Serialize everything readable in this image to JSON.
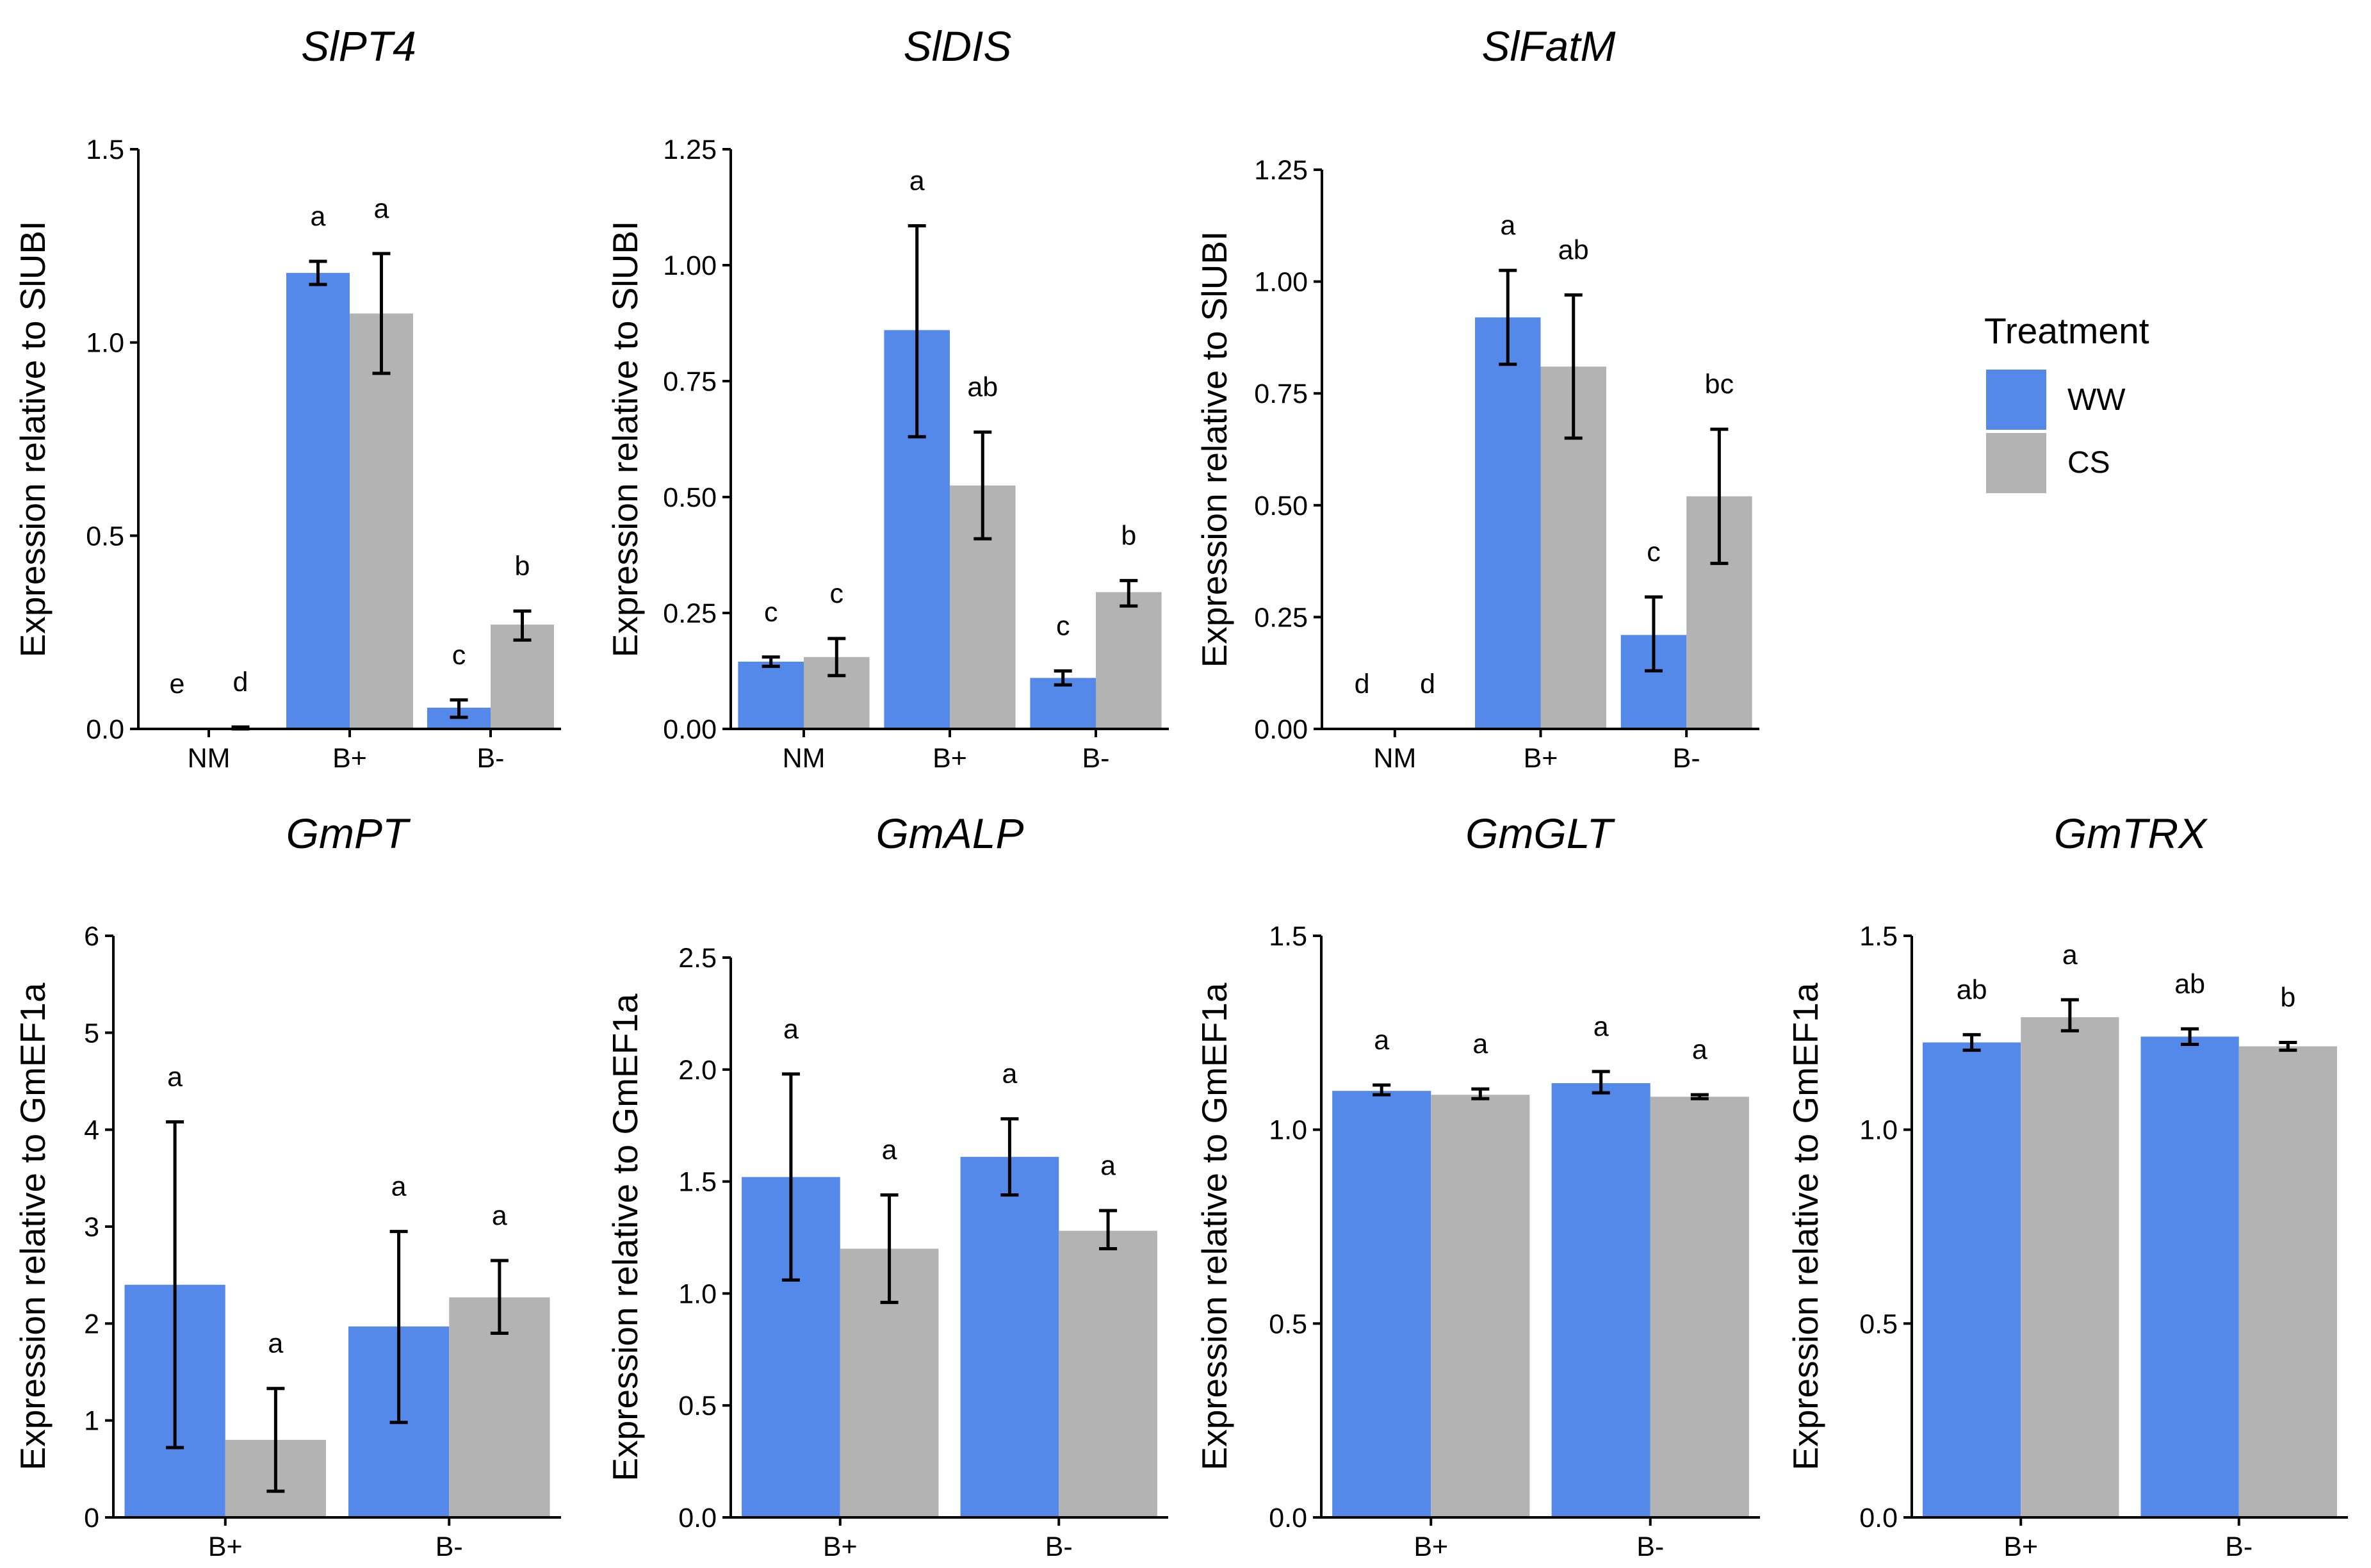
{
  "colors": {
    "WW": "#5589E9",
    "CS": "#B3B3B3",
    "axis": "#000000",
    "background": "#FFFFFF"
  },
  "legend": {
    "title": "Treatment",
    "items": [
      {
        "label": "WW",
        "color": "#5589E9"
      },
      {
        "label": "CS",
        "color": "#B3B3B3"
      }
    ]
  },
  "chart_data": [
    {
      "id": "SlPT4",
      "type": "bar",
      "title": "SlPT4",
      "ylabel": "Expression relative to SlUBI",
      "categories": [
        "NM",
        "B+",
        "B-"
      ],
      "ylim": [
        0,
        1.5
      ],
      "yticks": [
        0.0,
        0.5,
        1.0,
        1.5
      ],
      "ytick_labels": [
        "0.0",
        "0.5",
        "1.0",
        "1.5"
      ],
      "series": [
        {
          "name": "WW",
          "values": [
            0.0,
            1.18,
            0.055
          ],
          "err_low": [
            0.0,
            1.15,
            0.03
          ],
          "err_high": [
            0.0,
            1.21,
            0.075
          ],
          "letters": [
            "e",
            "a",
            "c"
          ]
        },
        {
          "name": "CS",
          "values": [
            0.003,
            1.075,
            0.27
          ],
          "err_low": [
            0.0,
            0.92,
            0.23
          ],
          "err_high": [
            0.005,
            1.23,
            0.305
          ],
          "letters": [
            "d",
            "a",
            "b"
          ]
        }
      ]
    },
    {
      "id": "SlDIS",
      "type": "bar",
      "title": "SlDIS",
      "ylabel": "Expression relative to SlUBI",
      "categories": [
        "NM",
        "B+",
        "B-"
      ],
      "ylim": [
        0,
        1.25
      ],
      "yticks": [
        0.0,
        0.25,
        0.5,
        0.75,
        1.0,
        1.25
      ],
      "ytick_labels": [
        "0.00",
        "0.25",
        "0.50",
        "0.75",
        "1.00",
        "1.25"
      ],
      "series": [
        {
          "name": "WW",
          "values": [
            0.145,
            0.86,
            0.11
          ],
          "err_low": [
            0.135,
            0.63,
            0.095
          ],
          "err_high": [
            0.155,
            1.085,
            0.125
          ],
          "letters": [
            "c",
            "a",
            "c"
          ]
        },
        {
          "name": "CS",
          "values": [
            0.155,
            0.525,
            0.295
          ],
          "err_low": [
            0.115,
            0.41,
            0.265
          ],
          "err_high": [
            0.195,
            0.64,
            0.32
          ],
          "letters": [
            "c",
            "ab",
            "b"
          ]
        }
      ]
    },
    {
      "id": "SlFatM",
      "type": "bar",
      "title": "SlFatM",
      "ylabel": "Expression relative to SlUBI",
      "categories": [
        "NM",
        "B+",
        "B-"
      ],
      "ylim": [
        0,
        1.25
      ],
      "yticks": [
        0.0,
        0.25,
        0.5,
        0.75,
        1.0,
        1.25
      ],
      "ytick_labels": [
        "0.00",
        "0.25",
        "0.50",
        "0.75",
        "1.00",
        "1.25"
      ],
      "series": [
        {
          "name": "WW",
          "values": [
            0.0,
            0.92,
            0.21
          ],
          "err_low": [
            0.0,
            0.815,
            0.13
          ],
          "err_high": [
            0.0,
            1.025,
            0.295
          ],
          "letters": [
            "d",
            "a",
            "c"
          ]
        },
        {
          "name": "CS",
          "values": [
            0.0,
            0.81,
            0.52
          ],
          "err_low": [
            0.0,
            0.65,
            0.37
          ],
          "err_high": [
            0.0,
            0.97,
            0.67
          ],
          "letters": [
            "d",
            "ab",
            "bc"
          ]
        }
      ]
    },
    {
      "id": "GmPT",
      "type": "bar",
      "title": "GmPT",
      "ylabel": "Expression relative to GmEF1a",
      "categories": [
        "B+",
        "B-"
      ],
      "ylim": [
        0,
        6
      ],
      "yticks": [
        0,
        1,
        2,
        3,
        4,
        5,
        6
      ],
      "ytick_labels": [
        "0",
        "1",
        "2",
        "3",
        "4",
        "5",
        "6"
      ],
      "series": [
        {
          "name": "WW",
          "values": [
            2.4,
            1.97
          ],
          "err_low": [
            0.72,
            0.98
          ],
          "err_high": [
            4.08,
            2.95
          ],
          "letters": [
            "a",
            "a"
          ]
        },
        {
          "name": "CS",
          "values": [
            0.8,
            2.27
          ],
          "err_low": [
            0.27,
            1.9
          ],
          "err_high": [
            1.33,
            2.65
          ],
          "letters": [
            "a",
            "a"
          ]
        }
      ]
    },
    {
      "id": "GmALP",
      "type": "bar",
      "title": "GmALP",
      "ylabel": "Expression relative to GmEF1a",
      "categories": [
        "B+",
        "B-"
      ],
      "ylim": [
        0,
        2.5
      ],
      "yticks": [
        0.0,
        0.5,
        1.0,
        1.5,
        2.0,
        2.5
      ],
      "ytick_labels": [
        "0.0",
        "0.5",
        "1.0",
        "1.5",
        "2.0",
        "2.5"
      ],
      "series": [
        {
          "name": "WW",
          "values": [
            1.52,
            1.61
          ],
          "err_low": [
            1.06,
            1.44
          ],
          "err_high": [
            1.98,
            1.78
          ],
          "letters": [
            "a",
            "a"
          ]
        },
        {
          "name": "CS",
          "values": [
            1.2,
            1.28
          ],
          "err_low": [
            0.96,
            1.2
          ],
          "err_high": [
            1.44,
            1.37
          ],
          "letters": [
            "a",
            "a"
          ]
        }
      ]
    },
    {
      "id": "GmGLT",
      "type": "bar",
      "title": "GmGLT",
      "ylabel": "Expression relative to GmEF1a",
      "categories": [
        "B+",
        "B-"
      ],
      "ylim": [
        0,
        1.5
      ],
      "yticks": [
        0.0,
        0.5,
        1.0,
        1.5
      ],
      "ytick_labels": [
        "0.0",
        "0.5",
        "1.0",
        "1.5"
      ],
      "series": [
        {
          "name": "WW",
          "values": [
            1.1,
            1.12
          ],
          "err_low": [
            1.09,
            1.095
          ],
          "err_high": [
            1.115,
            1.15
          ],
          "letters": [
            "a",
            "a"
          ]
        },
        {
          "name": "CS",
          "values": [
            1.09,
            1.085
          ],
          "err_low": [
            1.08,
            1.08
          ],
          "err_high": [
            1.105,
            1.09
          ],
          "letters": [
            "a",
            "a"
          ]
        }
      ]
    },
    {
      "id": "GmTRX",
      "type": "bar",
      "title": "GmTRX",
      "ylabel": "Expression relative to GmEF1a",
      "categories": [
        "B+",
        "B-"
      ],
      "ylim": [
        0,
        1.5
      ],
      "yticks": [
        0.0,
        0.5,
        1.0,
        1.5
      ],
      "ytick_labels": [
        "0.0",
        "0.5",
        "1.0",
        "1.5"
      ],
      "series": [
        {
          "name": "WW",
          "values": [
            1.225,
            1.24
          ],
          "err_low": [
            1.205,
            1.22
          ],
          "err_high": [
            1.245,
            1.26
          ],
          "letters": [
            "ab",
            "ab"
          ]
        },
        {
          "name": "CS",
          "values": [
            1.29,
            1.215
          ],
          "err_low": [
            1.255,
            1.205
          ],
          "err_high": [
            1.335,
            1.225
          ],
          "letters": [
            "a",
            "b"
          ]
        }
      ]
    }
  ]
}
